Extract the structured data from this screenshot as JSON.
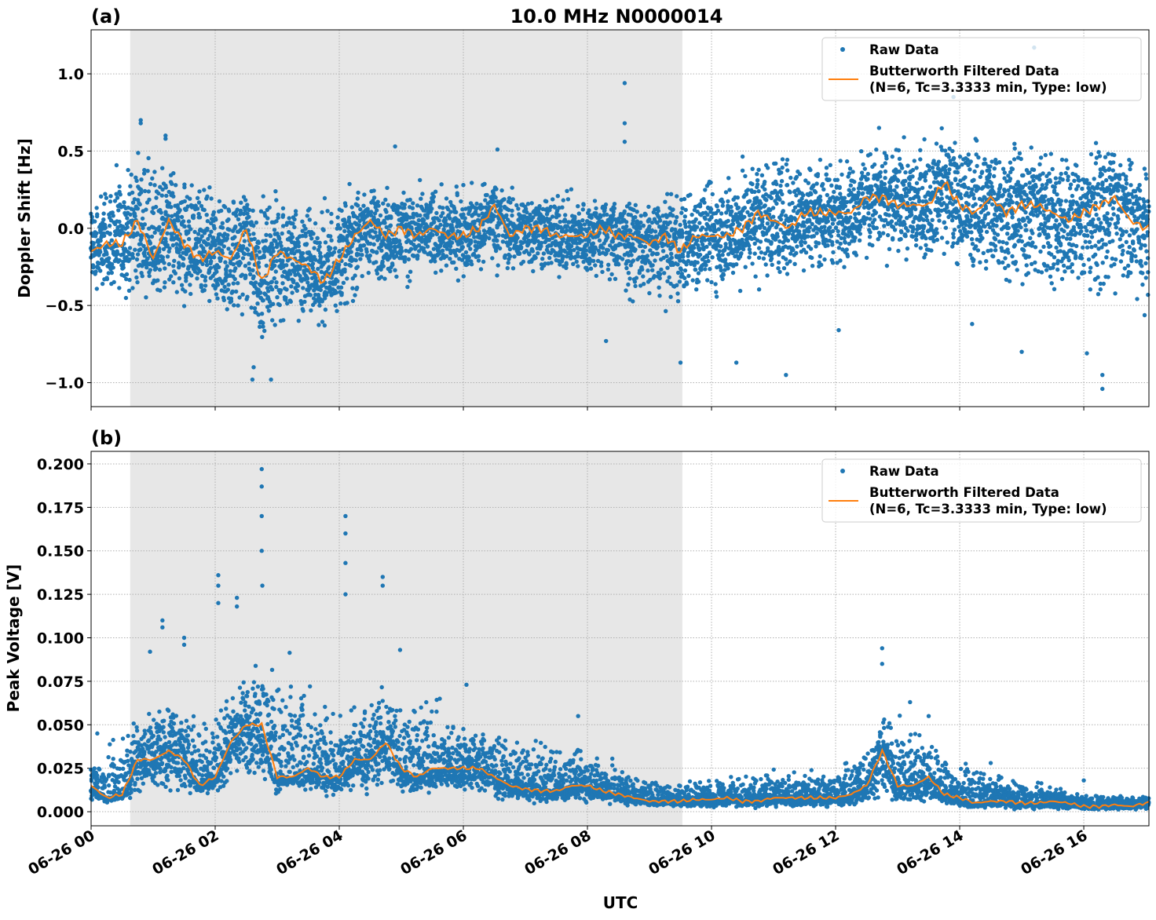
{
  "figure": {
    "title": "10.0 MHz N0000014",
    "xlabel": "UTC"
  },
  "colors": {
    "raw": "#1f77b4",
    "filtered": "#ff7f0e",
    "shade": "#e7e7e7",
    "grid": "#b0b0b0"
  },
  "chart_data": [
    {
      "type": "scatter+line",
      "panel_label": "(a)",
      "title": "10.0 MHz N0000014",
      "xlabel": "",
      "ylabel": "Doppler Shift [Hz]",
      "x_unit": "hours UTC on 06-26",
      "xlim": [
        0,
        17.05
      ],
      "ylim": [
        -1.155,
        1.285
      ],
      "yticks": [
        -1.0,
        -0.5,
        0.0,
        0.5,
        1.0
      ],
      "ytick_labels": [
        "−1.0",
        "−0.5",
        "0.0",
        "0.5",
        "1.0"
      ],
      "xticks": [
        0,
        2,
        4,
        6,
        8,
        10,
        12,
        14,
        16
      ],
      "shaded_interval": [
        0.63,
        9.53
      ],
      "grid": true,
      "legend": {
        "placement": "top-right",
        "entries": [
          "Raw Data",
          "Butterworth Filtered Data\n(N=6, Tc=3.3333 min, Type: low)"
        ],
        "line1": "Butterworth Filtered Data",
        "line2": "(N=6, Tc=3.3333 min, Type: low)",
        "raw": "Raw Data"
      },
      "filtered": {
        "name": "Butterworth Filtered Data",
        "x_step_hours": 0.25,
        "values": [
          -0.15,
          -0.1,
          -0.1,
          0.05,
          -0.2,
          0.05,
          -0.1,
          -0.2,
          -0.15,
          -0.2,
          0.0,
          -0.35,
          -0.15,
          -0.2,
          -0.25,
          -0.35,
          -0.2,
          -0.05,
          0.05,
          -0.05,
          0.0,
          -0.05,
          0.0,
          -0.05,
          -0.05,
          0.0,
          0.15,
          -0.05,
          0.0,
          0.0,
          -0.05,
          -0.05,
          -0.05,
          0.0,
          -0.05,
          -0.05,
          -0.1,
          -0.05,
          -0.15,
          -0.05,
          -0.05,
          -0.05,
          0.0,
          0.1,
          0.05,
          0.0,
          0.1,
          0.1,
          0.1,
          0.1,
          0.2,
          0.2,
          0.15,
          0.15,
          0.15,
          0.3,
          0.15,
          0.1,
          0.2,
          0.1,
          0.15,
          0.15,
          0.1,
          0.05,
          0.1,
          0.15,
          0.2,
          0.05,
          0.0
        ]
      },
      "raw": {
        "name": "Raw Data",
        "x_step_hours": 1,
        "max": [
          0.3,
          0.6,
          0.3,
          0.3,
          0.3,
          0.3,
          0.35,
          0.3,
          0.25,
          0.2,
          0.4,
          0.6,
          0.5,
          0.6,
          0.7,
          0.6,
          0.6,
          0.5
        ],
        "min": [
          -0.45,
          -0.5,
          -0.65,
          -0.8,
          -0.6,
          -0.4,
          -0.35,
          -0.35,
          -0.4,
          -0.55,
          -0.5,
          -0.4,
          -0.3,
          -0.25,
          -0.3,
          -0.5,
          -0.55,
          -0.6
        ],
        "outliers": [
          [
            2.6,
            -0.98
          ],
          [
            2.9,
            -0.98
          ],
          [
            2.62,
            -0.9
          ],
          [
            8.6,
            0.94
          ],
          [
            8.6,
            0.68
          ],
          [
            8.6,
            0.56
          ],
          [
            0.8,
            0.7
          ],
          [
            0.8,
            0.68
          ],
          [
            1.2,
            0.6
          ],
          [
            1.2,
            0.58
          ],
          [
            4.9,
            0.53
          ],
          [
            6.55,
            0.51
          ],
          [
            15.2,
            1.17
          ],
          [
            16.3,
            -1.04
          ],
          [
            16.3,
            -0.95
          ],
          [
            9.5,
            -0.87
          ],
          [
            10.4,
            -0.87
          ],
          [
            13.9,
            0.85
          ],
          [
            12.7,
            0.65
          ],
          [
            14.2,
            -0.62
          ],
          [
            11.2,
            -0.95
          ],
          [
            12.05,
            -0.66
          ],
          [
            15.0,
            -0.8
          ],
          [
            16.05,
            -0.81
          ],
          [
            8.3,
            -0.73
          ]
        ]
      }
    },
    {
      "type": "scatter+line",
      "panel_label": "(b)",
      "xlabel": "UTC",
      "ylabel": "Peak Voltage [V]",
      "xlim": [
        0,
        17.05
      ],
      "ylim": [
        -0.0081,
        0.2072
      ],
      "yticks": [
        0.0,
        0.025,
        0.05,
        0.075,
        0.1,
        0.125,
        0.15,
        0.175,
        0.2
      ],
      "ytick_labels": [
        "0.000",
        "0.025",
        "0.050",
        "0.075",
        "0.100",
        "0.125",
        "0.150",
        "0.175",
        "0.200"
      ],
      "xticks": [
        0,
        2,
        4,
        6,
        8,
        10,
        12,
        14,
        16
      ],
      "xtick_labels": [
        "06-26 00",
        "06-26 02",
        "06-26 04",
        "06-26 06",
        "06-26 08",
        "06-26 10",
        "06-26 12",
        "06-26 14",
        "06-26 16"
      ],
      "shaded_interval": [
        0.63,
        9.53
      ],
      "grid": true,
      "legend": {
        "placement": "top-right",
        "raw": "Raw Data",
        "line1": "Butterworth Filtered Data",
        "line2": "(N=6, Tc=3.3333 min, Type: low)"
      },
      "filtered": {
        "name": "Butterworth Filtered Data",
        "x_step_hours": 0.25,
        "values": [
          0.015,
          0.008,
          0.01,
          0.03,
          0.03,
          0.035,
          0.03,
          0.015,
          0.02,
          0.04,
          0.05,
          0.05,
          0.02,
          0.02,
          0.025,
          0.02,
          0.02,
          0.03,
          0.03,
          0.04,
          0.025,
          0.02,
          0.025,
          0.025,
          0.025,
          0.025,
          0.02,
          0.015,
          0.013,
          0.012,
          0.012,
          0.015,
          0.015,
          0.012,
          0.01,
          0.008,
          0.006,
          0.006,
          0.006,
          0.007,
          0.007,
          0.008,
          0.006,
          0.006,
          0.008,
          0.008,
          0.008,
          0.008,
          0.008,
          0.01,
          0.015,
          0.035,
          0.015,
          0.015,
          0.02,
          0.01,
          0.008,
          0.005,
          0.006,
          0.006,
          0.005,
          0.005,
          0.006,
          0.005,
          0.003,
          0.003,
          0.004,
          0.003,
          0.005
        ]
      },
      "raw": {
        "name": "Raw Data",
        "x_step_hours": 1,
        "max": [
          0.03,
          0.07,
          0.065,
          0.1,
          0.06,
          0.085,
          0.055,
          0.045,
          0.04,
          0.02,
          0.02,
          0.025,
          0.025,
          0.065,
          0.03,
          0.02,
          0.012,
          0.01
        ],
        "min": [
          0.004,
          0.008,
          0.01,
          0.01,
          0.008,
          0.008,
          0.008,
          0.005,
          0.004,
          0.003,
          0.002,
          0.002,
          0.002,
          0.003,
          0.002,
          0.001,
          0.001,
          0.001
        ],
        "outliers": [
          [
            2.75,
            0.197
          ],
          [
            2.75,
            0.187
          ],
          [
            2.75,
            0.17
          ],
          [
            2.75,
            0.15
          ],
          [
            2.76,
            0.13
          ],
          [
            4.1,
            0.17
          ],
          [
            4.1,
            0.16
          ],
          [
            4.1,
            0.143
          ],
          [
            4.1,
            0.125
          ],
          [
            2.05,
            0.136
          ],
          [
            2.05,
            0.13
          ],
          [
            2.05,
            0.12
          ],
          [
            4.7,
            0.135
          ],
          [
            4.7,
            0.13
          ],
          [
            2.35,
            0.123
          ],
          [
            2.35,
            0.118
          ],
          [
            1.5,
            0.1
          ],
          [
            1.5,
            0.096
          ],
          [
            1.15,
            0.11
          ],
          [
            1.15,
            0.106
          ],
          [
            0.95,
            0.092
          ],
          [
            12.75,
            0.094
          ],
          [
            12.75,
            0.085
          ],
          [
            13.2,
            0.063
          ],
          [
            13.5,
            0.055
          ],
          [
            7.85,
            0.055
          ],
          [
            6.05,
            0.073
          ],
          [
            0.1,
            0.045
          ],
          [
            4.98,
            0.093
          ],
          [
            14.5,
            0.028
          ],
          [
            16.0,
            0.018
          ]
        ]
      }
    }
  ]
}
